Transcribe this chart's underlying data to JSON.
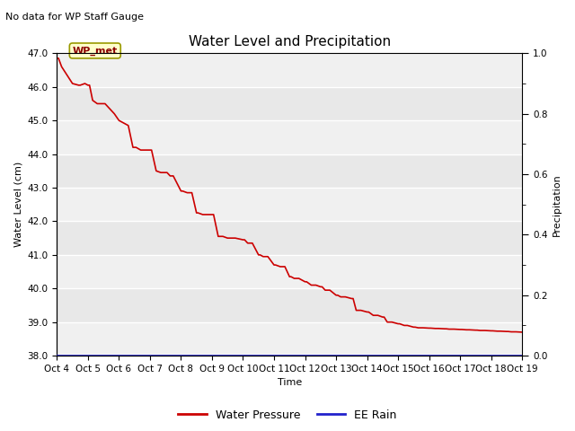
{
  "title": "Water Level and Precipitation",
  "subtitle": "No data for WP Staff Gauge",
  "ylabel_left": "Water Level (cm)",
  "ylabel_right": "Precipitation",
  "xlabel": "Time",
  "ylim_left": [
    38.0,
    47.0
  ],
  "ylim_right": [
    0.0,
    1.0
  ],
  "yticks_left": [
    38.0,
    39.0,
    40.0,
    41.0,
    42.0,
    43.0,
    44.0,
    45.0,
    46.0,
    47.0
  ],
  "yticks_right": [
    0.0,
    0.2,
    0.4,
    0.6,
    0.8,
    1.0
  ],
  "xtick_labels": [
    "Oct 4",
    "Oct 5",
    "Oct 6",
    "Oct 7",
    "Oct 8",
    "Oct 9",
    "Oct 10",
    "Oct 11",
    "Oct 12",
    "Oct 13",
    "Oct 14",
    "Oct 15",
    "Oct 16",
    "Oct 17",
    "Oct 18",
    "Oct 19"
  ],
  "plot_bg_color": "#e8e8e8",
  "band_color": "#f0f0f0",
  "water_pressure_color": "#cc0000",
  "rain_color": "#2222cc",
  "annotation_text": "WP_met",
  "title_fontsize": 11,
  "subtitle_fontsize": 8,
  "axis_label_fontsize": 8,
  "tick_fontsize": 7.5,
  "legend_entries": [
    "Water Pressure",
    "EE Rain"
  ],
  "legend_colors": [
    "#cc0000",
    "#2222cc"
  ],
  "water_x": [
    0,
    0.05,
    0.15,
    0.5,
    0.7,
    0.75,
    0.9,
    1.0,
    1.05,
    1.15,
    1.3,
    1.45,
    1.55,
    1.7,
    1.85,
    2.0,
    2.1,
    2.3,
    2.45,
    2.55,
    2.7,
    2.85,
    3.0,
    3.05,
    3.2,
    3.35,
    3.5,
    3.55,
    3.65,
    3.75,
    4.0,
    4.05,
    4.2,
    4.35,
    4.5,
    4.55,
    4.7,
    4.85,
    5.0,
    5.05,
    5.2,
    5.35,
    5.5,
    5.55,
    5.7,
    5.75,
    6.0,
    6.05,
    6.15,
    6.3,
    6.5,
    6.55,
    6.65,
    6.8,
    7.0,
    7.05,
    7.2,
    7.35,
    7.5,
    7.55,
    7.65,
    7.8,
    8.0,
    8.05,
    8.2,
    8.35,
    8.5,
    8.55,
    8.65,
    8.8,
    9.0,
    9.05,
    9.15,
    9.3,
    9.5,
    9.55,
    9.65,
    9.8,
    10.0,
    10.05,
    10.2,
    10.35,
    10.5,
    10.55,
    10.65,
    10.8,
    11.0,
    11.05,
    11.2,
    11.3,
    11.5,
    11.55,
    11.65,
    11.8,
    12.0,
    12.05,
    12.2,
    12.3,
    12.5,
    12.55,
    12.65,
    12.8,
    13.0,
    13.05,
    13.2,
    13.3,
    13.5,
    13.55,
    13.65,
    13.8,
    14.0,
    14.05,
    14.2,
    14.3,
    14.5,
    14.55,
    14.65,
    14.8,
    15.0
  ],
  "water_y": [
    46.85,
    46.85,
    46.6,
    46.1,
    46.05,
    46.05,
    46.1,
    46.05,
    46.05,
    45.6,
    45.5,
    45.5,
    45.5,
    45.35,
    45.2,
    45.0,
    44.95,
    44.85,
    44.2,
    44.2,
    44.12,
    44.12,
    44.12,
    44.12,
    43.5,
    43.45,
    43.45,
    43.45,
    43.35,
    43.35,
    42.9,
    42.9,
    42.85,
    42.85,
    42.25,
    42.25,
    42.2,
    42.2,
    42.2,
    42.2,
    41.55,
    41.55,
    41.5,
    41.5,
    41.5,
    41.5,
    41.45,
    41.45,
    41.35,
    41.35,
    41.0,
    41.0,
    40.95,
    40.95,
    40.7,
    40.7,
    40.65,
    40.65,
    40.35,
    40.35,
    40.3,
    40.3,
    40.2,
    40.2,
    40.1,
    40.1,
    40.05,
    40.05,
    39.95,
    39.95,
    39.8,
    39.8,
    39.75,
    39.75,
    39.7,
    39.7,
    39.35,
    39.35,
    39.3,
    39.3,
    39.2,
    39.2,
    39.15,
    39.15,
    39.0,
    39.0,
    38.95,
    38.95,
    38.9,
    38.9,
    38.85,
    38.85,
    38.83,
    38.83,
    38.82,
    38.82,
    38.81,
    38.81,
    38.8,
    38.8,
    38.79,
    38.79,
    38.78,
    38.78,
    38.77,
    38.77,
    38.76,
    38.76,
    38.75,
    38.75,
    38.74,
    38.74,
    38.73,
    38.73,
    38.72,
    38.72,
    38.71,
    38.71,
    38.7
  ]
}
